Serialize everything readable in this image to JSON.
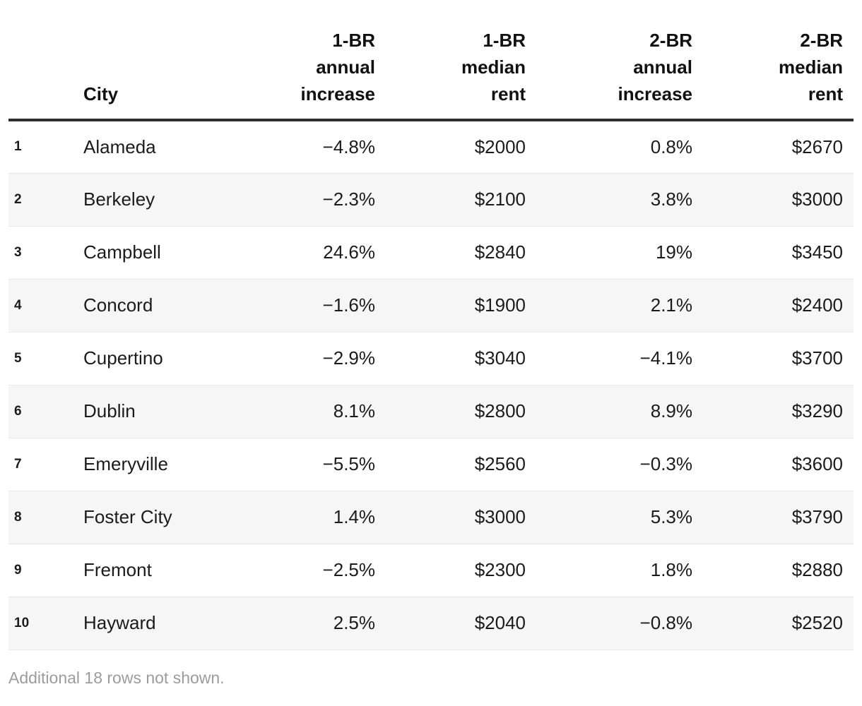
{
  "colors": {
    "background": "#ffffff",
    "text": "#1b1b1b",
    "header_text": "#111111",
    "header_rule": "#2e2e2e",
    "row_stripe": "#f6f6f6",
    "row_separator": "#e7e7e7",
    "footnote_text": "#9c9c9c"
  },
  "chart_data": {
    "type": "table",
    "title": "",
    "layout": {
      "zebra_striping": true,
      "numeric_columns_right_aligned": true
    },
    "columns": [
      {
        "label": "",
        "align": "left"
      },
      {
        "label": "City",
        "align": "left"
      },
      {
        "label": "1-BR\nannual\nincrease",
        "align": "right"
      },
      {
        "label": "1-BR\nmedian\nrent",
        "align": "right"
      },
      {
        "label": "2-BR\nannual\nincrease",
        "align": "right"
      },
      {
        "label": "2-BR\nmedian\nrent",
        "align": "right"
      }
    ],
    "rows": [
      {
        "cells": [
          "1",
          "Alameda",
          "−4.8%",
          "$2000",
          "0.8%",
          "$2670"
        ]
      },
      {
        "cells": [
          "2",
          "Berkeley",
          "−2.3%",
          "$2100",
          "3.8%",
          "$3000"
        ]
      },
      {
        "cells": [
          "3",
          "Campbell",
          "24.6%",
          "$2840",
          "19%",
          "$3450"
        ]
      },
      {
        "cells": [
          "4",
          "Concord",
          "−1.6%",
          "$1900",
          "2.1%",
          "$2400"
        ]
      },
      {
        "cells": [
          "5",
          "Cupertino",
          "−2.9%",
          "$3040",
          "−4.1%",
          "$3700"
        ]
      },
      {
        "cells": [
          "6",
          "Dublin",
          "8.1%",
          "$2800",
          "8.9%",
          "$3290"
        ]
      },
      {
        "cells": [
          "7",
          "Emeryville",
          "−5.5%",
          "$2560",
          "−0.3%",
          "$3600"
        ]
      },
      {
        "cells": [
          "8",
          "Foster City",
          "1.4%",
          "$3000",
          "5.3%",
          "$3790"
        ]
      },
      {
        "cells": [
          "9",
          "Fremont",
          "−2.5%",
          "$2300",
          "1.8%",
          "$2880"
        ]
      },
      {
        "cells": [
          "10",
          "Hayward",
          "2.5%",
          "$2040",
          "−0.8%",
          "$2520"
        ]
      }
    ],
    "footnote": "Additional 18 rows not shown."
  }
}
